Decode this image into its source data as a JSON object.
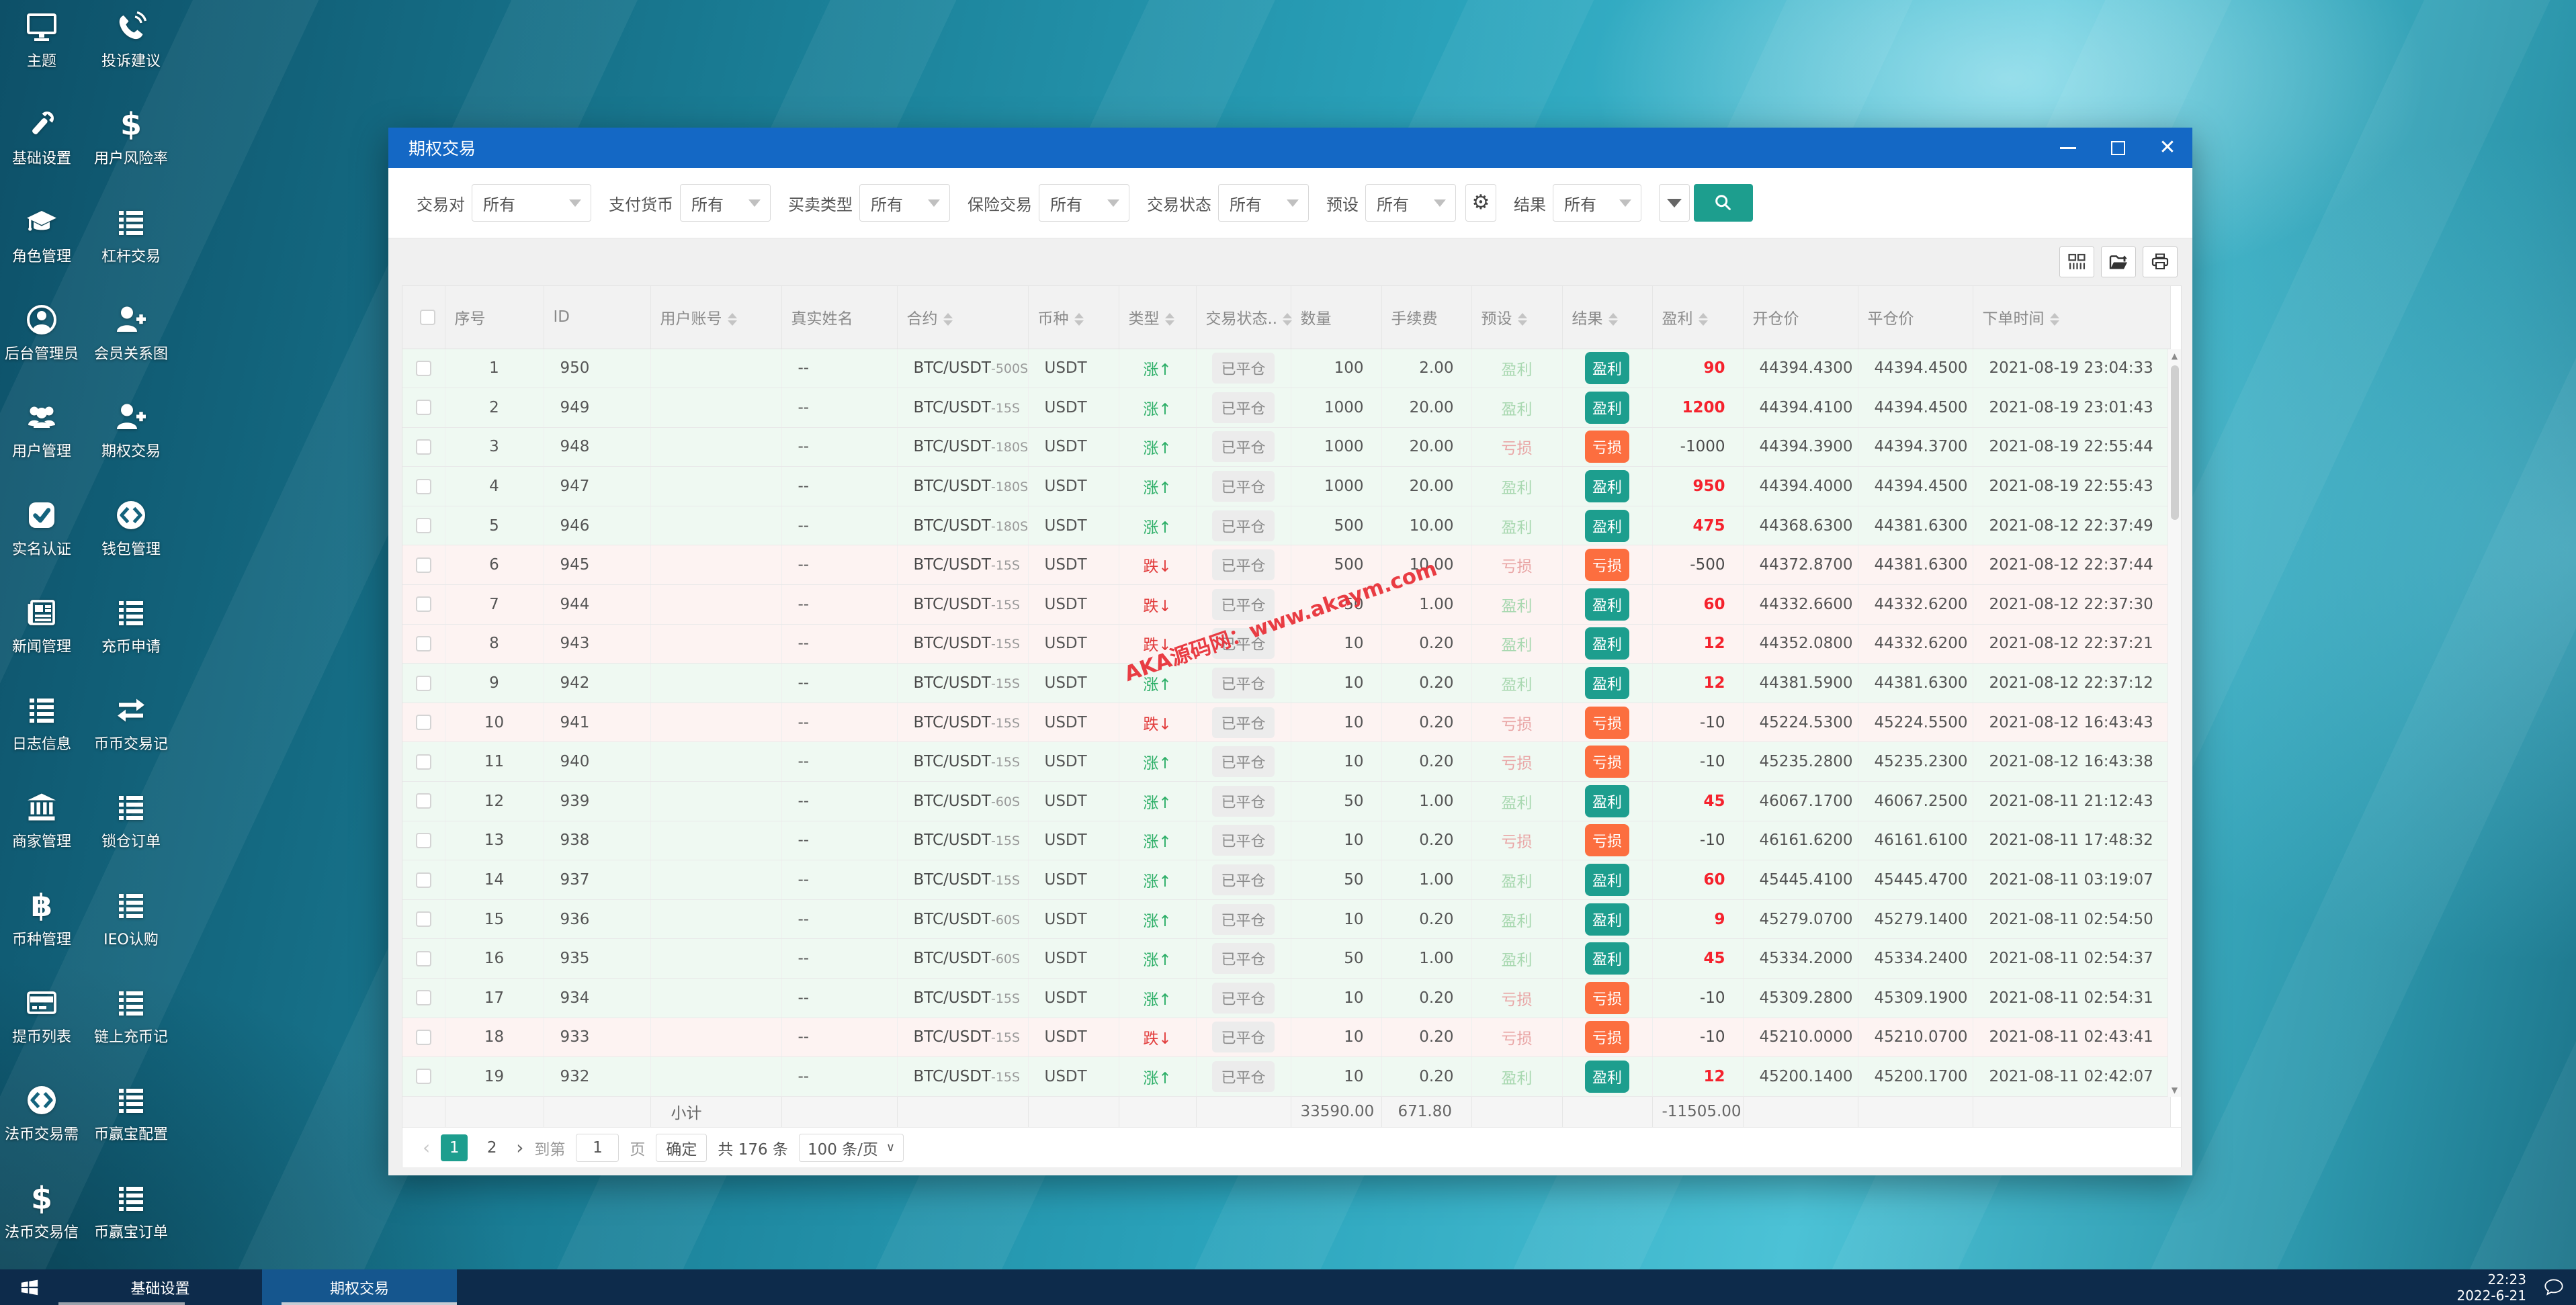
{
  "colors": {
    "titlebar": "#1468C5",
    "accent_teal": "#1D9E8E",
    "loss_orange": "#FC6E3F",
    "profit_red": "#F5222D",
    "up_green": "#2BAE66",
    "down_red": "#E23C3C",
    "taskbar": "#0D2B4B",
    "taskbar_active": "#15568E"
  },
  "desktop": {
    "icons": [
      {
        "label": "主题",
        "icon": "monitor"
      },
      {
        "label": "投诉建议",
        "icon": "phone"
      },
      {
        "label": "基础设置",
        "icon": "wrench"
      },
      {
        "label": "用户风险率",
        "icon": "dollar"
      },
      {
        "label": "角色管理",
        "icon": "cap"
      },
      {
        "label": "杠杆交易",
        "icon": "list"
      },
      {
        "label": "后台管理员",
        "icon": "user-circle"
      },
      {
        "label": "会员关系图",
        "icon": "user-plus"
      },
      {
        "label": "用户管理",
        "icon": "users"
      },
      {
        "label": "期权交易",
        "icon": "user-plus"
      },
      {
        "label": "实名认证",
        "icon": "check"
      },
      {
        "label": "钱包管理",
        "icon": "exchange"
      },
      {
        "label": "新闻管理",
        "icon": "news"
      },
      {
        "label": "充币申请",
        "icon": "list"
      },
      {
        "label": "日志信息",
        "icon": "list"
      },
      {
        "label": "币币交易记",
        "icon": "arrows"
      },
      {
        "label": "商家管理",
        "icon": "bank"
      },
      {
        "label": "锁仓订单",
        "icon": "list"
      },
      {
        "label": "币种管理",
        "icon": "bitcoin"
      },
      {
        "label": "IEO认购",
        "icon": "list"
      },
      {
        "label": "提币列表",
        "icon": "card"
      },
      {
        "label": "链上充币记",
        "icon": "list"
      },
      {
        "label": "法币交易需",
        "icon": "exchange"
      },
      {
        "label": "币赢宝配置",
        "icon": "list"
      },
      {
        "label": "法币交易信",
        "icon": "dollar"
      },
      {
        "label": "币赢宝订单",
        "icon": "list"
      }
    ]
  },
  "window": {
    "title": "期权交易",
    "filters": [
      {
        "label": "交易对",
        "value": "所有"
      },
      {
        "label": "支付货币",
        "value": "所有"
      },
      {
        "label": "买卖类型",
        "value": "所有"
      },
      {
        "label": "保险交易",
        "value": "所有"
      },
      {
        "label": "交易状态",
        "value": "所有"
      },
      {
        "label": "预设",
        "value": "所有"
      }
    ],
    "result_filter": {
      "label": "结果",
      "value": "所有"
    },
    "table": {
      "columns": [
        {
          "key": "check",
          "label": "",
          "sortable": false
        },
        {
          "key": "seq",
          "label": "序号",
          "sortable": false
        },
        {
          "key": "id",
          "label": "ID",
          "sortable": false
        },
        {
          "key": "account",
          "label": "用户账号",
          "sortable": true
        },
        {
          "key": "name",
          "label": "真实姓名",
          "sortable": false
        },
        {
          "key": "contract",
          "label": "合约",
          "sortable": true
        },
        {
          "key": "coin",
          "label": "币种",
          "sortable": true
        },
        {
          "key": "type",
          "label": "类型",
          "sortable": true
        },
        {
          "key": "status",
          "label": "交易状态..",
          "sortable": true
        },
        {
          "key": "amount",
          "label": "数量",
          "sortable": false
        },
        {
          "key": "fee",
          "label": "手续费",
          "sortable": false
        },
        {
          "key": "preset",
          "label": "预设",
          "sortable": true
        },
        {
          "key": "result",
          "label": "结果",
          "sortable": true
        },
        {
          "key": "profit",
          "label": "盈利",
          "sortable": true
        },
        {
          "key": "open",
          "label": "开仓价",
          "sortable": false
        },
        {
          "key": "close",
          "label": "平仓价",
          "sortable": false
        },
        {
          "key": "time",
          "label": "下单时间",
          "sortable": true
        }
      ],
      "rows": [
        {
          "seq": "1",
          "id": "950",
          "account": "",
          "name": "--",
          "contract": "BTC/USDT",
          "term": "500S",
          "coin": "USDT",
          "type": "up",
          "type_label": "涨",
          "status": "已平仓",
          "amount": "100",
          "fee": "2.00",
          "preset": "盈利",
          "result": "盈利",
          "profit": "90",
          "open": "44394.4300",
          "close": "44394.4500",
          "time": "2021-08-19 23:04:33"
        },
        {
          "seq": "2",
          "id": "949",
          "account": "",
          "name": "--",
          "contract": "BTC/USDT",
          "term": "15S",
          "coin": "USDT",
          "type": "up",
          "type_label": "涨",
          "status": "已平仓",
          "amount": "1000",
          "fee": "20.00",
          "preset": "盈利",
          "result": "盈利",
          "profit": "1200",
          "open": "44394.4100",
          "close": "44394.4500",
          "time": "2021-08-19 23:01:43"
        },
        {
          "seq": "3",
          "id": "948",
          "account": "",
          "name": "--",
          "contract": "BTC/USDT",
          "term": "180S",
          "coin": "USDT",
          "type": "up",
          "type_label": "涨",
          "status": "已平仓",
          "amount": "1000",
          "fee": "20.00",
          "preset": "亏损",
          "result": "亏损",
          "profit": "-1000",
          "open": "44394.3900",
          "close": "44394.3700",
          "time": "2021-08-19 22:55:44"
        },
        {
          "seq": "4",
          "id": "947",
          "account": "",
          "name": "--",
          "contract": "BTC/USDT",
          "term": "180S",
          "coin": "USDT",
          "type": "up",
          "type_label": "涨",
          "status": "已平仓",
          "amount": "1000",
          "fee": "20.00",
          "preset": "盈利",
          "result": "盈利",
          "profit": "950",
          "open": "44394.4000",
          "close": "44394.4500",
          "time": "2021-08-19 22:55:43"
        },
        {
          "seq": "5",
          "id": "946",
          "account": "",
          "name": "--",
          "contract": "BTC/USDT",
          "term": "180S",
          "coin": "USDT",
          "type": "up",
          "type_label": "涨",
          "status": "已平仓",
          "amount": "500",
          "fee": "10.00",
          "preset": "盈利",
          "result": "盈利",
          "profit": "475",
          "open": "44368.6300",
          "close": "44381.6300",
          "time": "2021-08-12 22:37:49"
        },
        {
          "seq": "6",
          "id": "945",
          "account": "",
          "name": "--",
          "contract": "BTC/USDT",
          "term": "15S",
          "coin": "USDT",
          "type": "down",
          "type_label": "跌",
          "status": "已平仓",
          "amount": "500",
          "fee": "10.00",
          "preset": "亏损",
          "result": "亏损",
          "profit": "-500",
          "open": "44372.8700",
          "close": "44381.6300",
          "time": "2021-08-12 22:37:44"
        },
        {
          "seq": "7",
          "id": "944",
          "account": "",
          "name": "--",
          "contract": "BTC/USDT",
          "term": "15S",
          "coin": "USDT",
          "type": "down",
          "type_label": "跌",
          "status": "已平仓",
          "amount": "50",
          "fee": "1.00",
          "preset": "盈利",
          "result": "盈利",
          "profit": "60",
          "open": "44332.6600",
          "close": "44332.6200",
          "time": "2021-08-12 22:37:30"
        },
        {
          "seq": "8",
          "id": "943",
          "account": "",
          "name": "--",
          "contract": "BTC/USDT",
          "term": "15S",
          "coin": "USDT",
          "type": "down",
          "type_label": "跌",
          "status": "已平仓",
          "amount": "10",
          "fee": "0.20",
          "preset": "盈利",
          "result": "盈利",
          "profit": "12",
          "open": "44352.0800",
          "close": "44332.6200",
          "time": "2021-08-12 22:37:21"
        },
        {
          "seq": "9",
          "id": "942",
          "account": "",
          "name": "--",
          "contract": "BTC/USDT",
          "term": "15S",
          "coin": "USDT",
          "type": "up",
          "type_label": "涨",
          "status": "已平仓",
          "amount": "10",
          "fee": "0.20",
          "preset": "盈利",
          "result": "盈利",
          "profit": "12",
          "open": "44381.5900",
          "close": "44381.6300",
          "time": "2021-08-12 22:37:12"
        },
        {
          "seq": "10",
          "id": "941",
          "account": "",
          "name": "--",
          "contract": "BTC/USDT",
          "term": "15S",
          "coin": "USDT",
          "type": "down",
          "type_label": "跌",
          "status": "已平仓",
          "amount": "10",
          "fee": "0.20",
          "preset": "亏损",
          "result": "亏损",
          "profit": "-10",
          "open": "45224.5300",
          "close": "45224.5500",
          "time": "2021-08-12 16:43:43"
        },
        {
          "seq": "11",
          "id": "940",
          "account": "",
          "name": "--",
          "contract": "BTC/USDT",
          "term": "15S",
          "coin": "USDT",
          "type": "up",
          "type_label": "涨",
          "status": "已平仓",
          "amount": "10",
          "fee": "0.20",
          "preset": "亏损",
          "result": "亏损",
          "profit": "-10",
          "open": "45235.2800",
          "close": "45235.2300",
          "time": "2021-08-12 16:43:38"
        },
        {
          "seq": "12",
          "id": "939",
          "account": "",
          "name": "--",
          "contract": "BTC/USDT",
          "term": "60S",
          "coin": "USDT",
          "type": "up",
          "type_label": "涨",
          "status": "已平仓",
          "amount": "50",
          "fee": "1.00",
          "preset": "盈利",
          "result": "盈利",
          "profit": "45",
          "open": "46067.1700",
          "close": "46067.2500",
          "time": "2021-08-11 21:12:43"
        },
        {
          "seq": "13",
          "id": "938",
          "account": "",
          "name": "--",
          "contract": "BTC/USDT",
          "term": "15S",
          "coin": "USDT",
          "type": "up",
          "type_label": "涨",
          "status": "已平仓",
          "amount": "10",
          "fee": "0.20",
          "preset": "亏损",
          "result": "亏损",
          "profit": "-10",
          "open": "46161.6200",
          "close": "46161.6100",
          "time": "2021-08-11 17:48:32"
        },
        {
          "seq": "14",
          "id": "937",
          "account": "",
          "name": "--",
          "contract": "BTC/USDT",
          "term": "15S",
          "coin": "USDT",
          "type": "up",
          "type_label": "涨",
          "status": "已平仓",
          "amount": "50",
          "fee": "1.00",
          "preset": "盈利",
          "result": "盈利",
          "profit": "60",
          "open": "45445.4100",
          "close": "45445.4700",
          "time": "2021-08-11 03:19:07"
        },
        {
          "seq": "15",
          "id": "936",
          "account": "",
          "name": "--",
          "contract": "BTC/USDT",
          "term": "60S",
          "coin": "USDT",
          "type": "up",
          "type_label": "涨",
          "status": "已平仓",
          "amount": "10",
          "fee": "0.20",
          "preset": "盈利",
          "result": "盈利",
          "profit": "9",
          "open": "45279.0700",
          "close": "45279.1400",
          "time": "2021-08-11 02:54:50"
        },
        {
          "seq": "16",
          "id": "935",
          "account": "",
          "name": "--",
          "contract": "BTC/USDT",
          "term": "60S",
          "coin": "USDT",
          "type": "up",
          "type_label": "涨",
          "status": "已平仓",
          "amount": "50",
          "fee": "1.00",
          "preset": "盈利",
          "result": "盈利",
          "profit": "45",
          "open": "45334.2000",
          "close": "45334.2400",
          "time": "2021-08-11 02:54:37"
        },
        {
          "seq": "17",
          "id": "934",
          "account": "",
          "name": "--",
          "contract": "BTC/USDT",
          "term": "15S",
          "coin": "USDT",
          "type": "up",
          "type_label": "涨",
          "status": "已平仓",
          "amount": "10",
          "fee": "0.20",
          "preset": "亏损",
          "result": "亏损",
          "profit": "-10",
          "open": "45309.2800",
          "close": "45309.1900",
          "time": "2021-08-11 02:54:31"
        },
        {
          "seq": "18",
          "id": "933",
          "account": "",
          "name": "--",
          "contract": "BTC/USDT",
          "term": "15S",
          "coin": "USDT",
          "type": "down",
          "type_label": "跌",
          "status": "已平仓",
          "amount": "10",
          "fee": "0.20",
          "preset": "亏损",
          "result": "亏损",
          "profit": "-10",
          "open": "45210.0000",
          "close": "45210.0700",
          "time": "2021-08-11 02:43:41"
        },
        {
          "seq": "19",
          "id": "932",
          "account": "",
          "name": "--",
          "contract": "BTC/USDT",
          "term": "15S",
          "coin": "USDT",
          "type": "up",
          "type_label": "涨",
          "status": "已平仓",
          "amount": "10",
          "fee": "0.20",
          "preset": "盈利",
          "result": "盈利",
          "profit": "12",
          "open": "45200.1400",
          "close": "45200.1700",
          "time": "2021-08-11 02:42:07"
        }
      ],
      "subtotal": {
        "label": "小计",
        "amount": "33590.00",
        "fee": "671.80",
        "profit": "-11505.00"
      }
    },
    "pagination": {
      "prev": "‹",
      "next": "›",
      "pages": [
        "1",
        "2"
      ],
      "goto_label": "到第",
      "page_value": "1",
      "page_unit": "页",
      "confirm": "确定",
      "total": "共 176 条",
      "size": "100 条/页"
    }
  },
  "watermark": "AKA源码网：www.akaym.com",
  "taskbar": {
    "items": [
      {
        "label": "基础设置",
        "active": false
      },
      {
        "label": "期权交易",
        "active": true
      }
    ],
    "clock": {
      "time": "22:23",
      "date": "2022-6-21"
    }
  }
}
